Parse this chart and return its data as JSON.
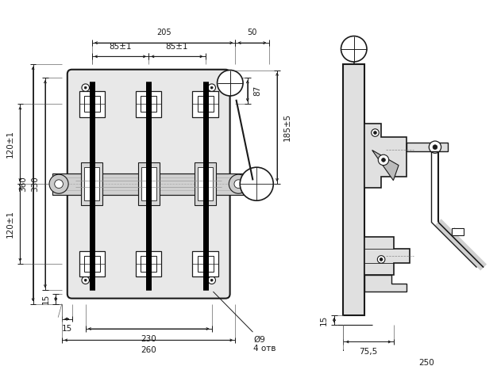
{
  "bg_color": "#ffffff",
  "line_color": "#1a1a1a",
  "fig_width": 6.31,
  "fig_height": 4.62,
  "dpi": 100,
  "dims": {
    "d205": "205",
    "d50": "50",
    "d85a": "85±1",
    "d85b": "85±1",
    "d87": "87",
    "d185": "185±5",
    "d360": "360",
    "d330": "330",
    "d120a": "120±1",
    "d120b": "120±1",
    "d15a": "15",
    "d15b": "15",
    "d230": "230",
    "d260": "260",
    "dhole": "Ø9\n4 отв",
    "d_s15": "15",
    "d_s75": "75,5",
    "d_s250": "250"
  }
}
